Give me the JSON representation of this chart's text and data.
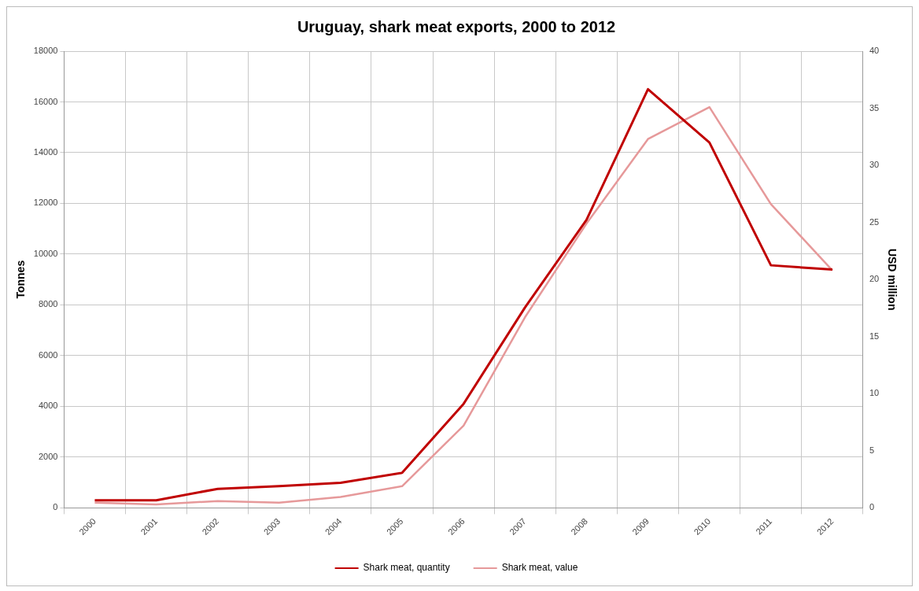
{
  "chart_data": {
    "type": "line",
    "title": "Uruguay, shark meat exports, 2000 to 2012",
    "ylabel": "Tonnes",
    "y2label": "USD million",
    "categories": [
      "2000",
      "2001",
      "2002",
      "2003",
      "2004",
      "2005",
      "2006",
      "2007",
      "2008",
      "2009",
      "2010",
      "2011",
      "2012"
    ],
    "series": [
      {
        "name": "Shark meat, quantity",
        "color": "#c00000",
        "values": [
          300,
          300,
          750,
          860,
          985,
          1380,
          4100,
          7900,
          11350,
          16500,
          14400,
          9560,
          9390
        ]
      },
      {
        "name": "Shark meat, value",
        "color": "#e6999a",
        "axis": "y2",
        "values": [
          0.45,
          0.3,
          0.6,
          0.45,
          0.95,
          1.9,
          7.2,
          16.7,
          24.9,
          32.3,
          35.1,
          26.6,
          20.8
        ]
      }
    ],
    "ylim": [
      0,
      18000
    ],
    "yticks": [
      0,
      2000,
      4000,
      6000,
      8000,
      10000,
      12000,
      14000,
      16000,
      18000
    ],
    "y2lim": [
      0,
      40
    ],
    "y2ticks": [
      0,
      5,
      10,
      15,
      20,
      25,
      30,
      35,
      40
    ],
    "grid": true,
    "legend": "bottom",
    "marker": "none",
    "line_style": "solid"
  }
}
